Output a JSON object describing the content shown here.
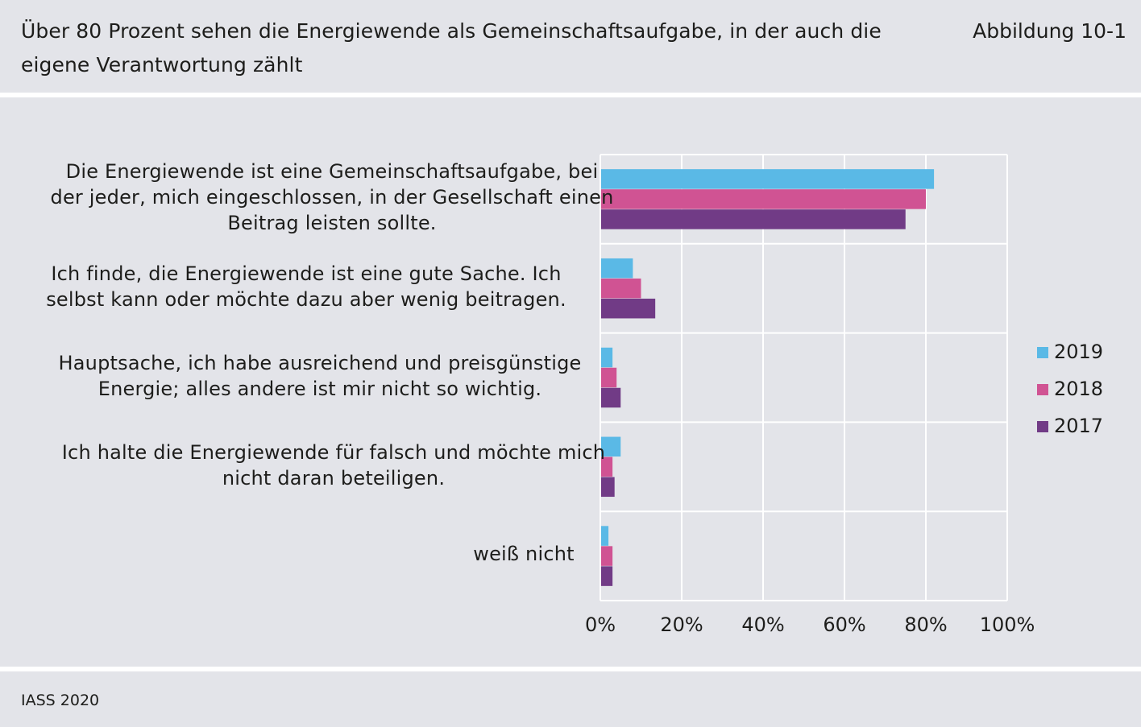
{
  "header": {
    "title": "Über 80 Prozent sehen die Energiewende als Gemeinschaftsaufgabe, in der auch die eigene Verantwortung zählt",
    "figure_label": "Abbildung 10-1"
  },
  "footer": {
    "source": "IASS 2020"
  },
  "chart_data": {
    "type": "bar",
    "orientation": "horizontal",
    "categories": [
      "Die Energiewende ist eine Gemeinschaftsaufgabe, bei der jeder, mich eingeschlossen, in der Gesellschaft einen Beitrag leisten sollte.",
      "Ich finde, die Energiewende ist eine gute Sache. Ich selbst kann oder möchte dazu aber wenig beitragen.",
      "Hauptsache, ich habe ausreichend und preisgünstige Energie; alles andere ist mir nicht so wichtig.",
      "Ich halte die Energiewende für falsch und möchte mich nicht daran beteiligen.",
      "weiß nicht"
    ],
    "series": [
      {
        "name": "2019",
        "color": "#5ab9e6",
        "values": [
          82,
          8,
          3,
          5,
          2
        ]
      },
      {
        "name": "2018",
        "color": "#d05393",
        "values": [
          80,
          10,
          4,
          3,
          3
        ]
      },
      {
        "name": "2017",
        "color": "#713b86",
        "values": [
          75,
          13.5,
          5,
          3.5,
          3
        ]
      }
    ],
    "xlim": [
      0,
      100
    ],
    "xticks": [
      "0%",
      "20%",
      "40%",
      "60%",
      "80%",
      "100%"
    ],
    "grid": true,
    "legend_position": "right"
  }
}
